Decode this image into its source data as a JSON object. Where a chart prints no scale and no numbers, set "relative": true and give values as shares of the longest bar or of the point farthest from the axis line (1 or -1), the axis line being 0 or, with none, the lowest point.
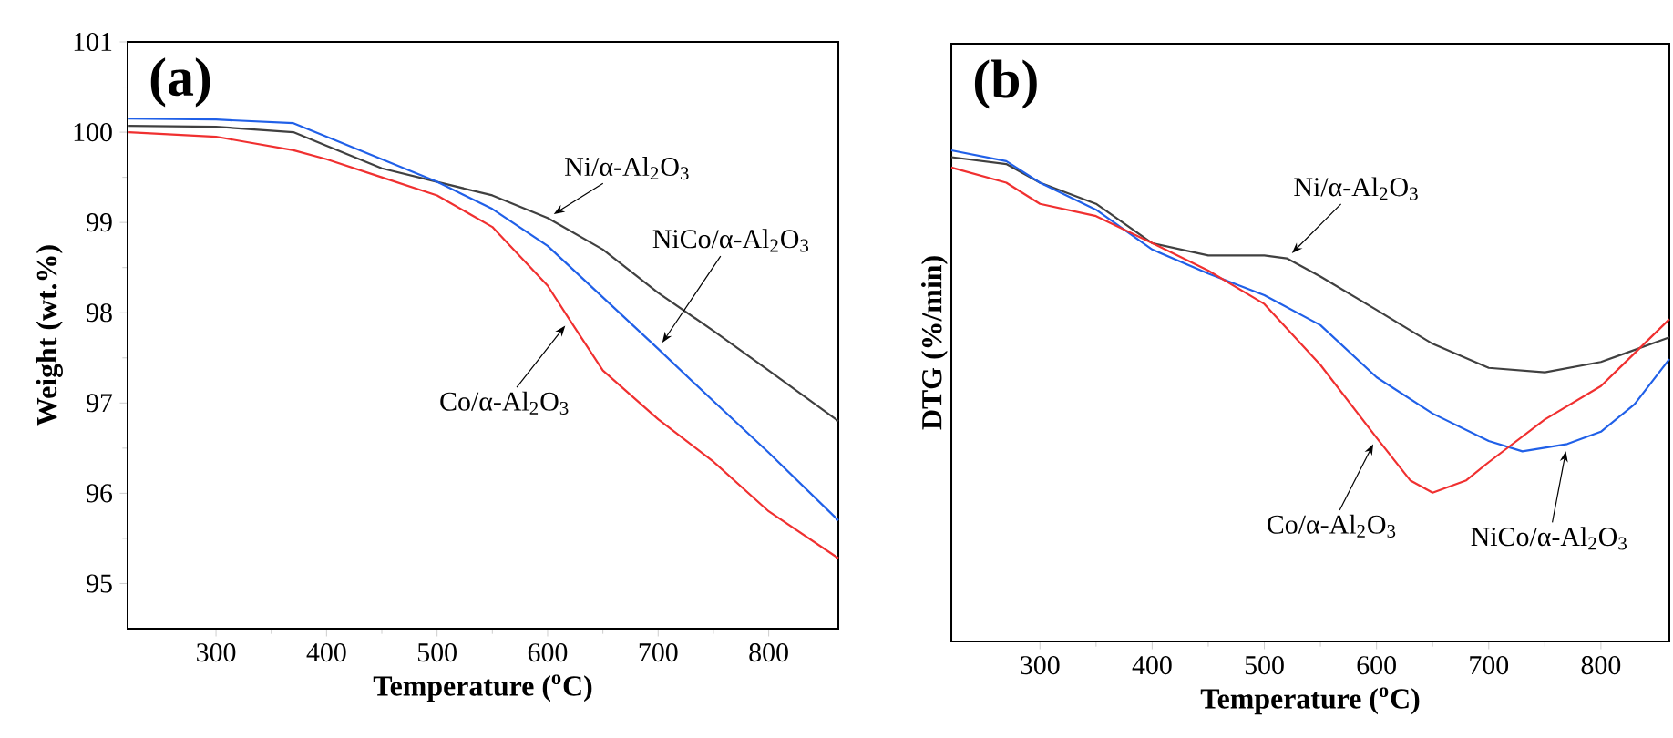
{
  "chart_data": [
    {
      "type": "line",
      "xlabel": "Temperature ($^{o}$C)",
      "ylabel": "Weight (wt.%)",
      "xlim": [
        220,
        863
      ],
      "ylim": [
        94.5,
        101
      ],
      "xticks": [
        300,
        400,
        500,
        600,
        700,
        800
      ],
      "yticks": [
        95,
        96,
        97,
        98,
        99,
        100,
        101
      ],
      "annotations": [
        "(a)",
        {
          "text": "Ni/α-Al$_{2}$O$_{3}$",
          "x": 600,
          "y": 99.05
        },
        {
          "text": "NiCo/α-Al$_{2}$O$_{3}$",
          "x": 700,
          "y": 97.6
        },
        {
          "text": "Co/α-Al$_{2}$O$_{3}$",
          "x": 620,
          "y": 97.92
        }
      ],
      "series": [
        {
          "color": "#404040",
          "x": [
            221,
            300,
            370,
            400,
            450,
            500,
            550,
            600,
            650,
            700,
            750,
            800,
            863
          ],
          "values": [
            100.07,
            100.06,
            100.0,
            99.85,
            99.6,
            99.45,
            99.3,
            99.05,
            98.7,
            98.22,
            97.8,
            97.36,
            96.8
          ]
        },
        {
          "color": "#2060e8",
          "x": [
            221,
            300,
            370,
            400,
            450,
            500,
            550,
            600,
            650,
            700,
            750,
            800,
            863
          ],
          "values": [
            100.15,
            100.14,
            100.1,
            99.95,
            99.7,
            99.45,
            99.15,
            98.74,
            98.17,
            97.6,
            97.02,
            96.45,
            95.7
          ]
        },
        {
          "color": "#f03030",
          "x": [
            221,
            300,
            370,
            400,
            450,
            500,
            550,
            600,
            620,
            650,
            700,
            750,
            800,
            863
          ],
          "values": [
            100.0,
            99.95,
            99.8,
            99.7,
            99.5,
            99.3,
            98.95,
            98.3,
            97.92,
            97.36,
            96.82,
            96.35,
            95.8,
            95.28
          ]
        }
      ]
    },
    {
      "type": "line",
      "relative": true,
      "xlabel": "Temperature ($^{o}$C)",
      "ylabel": "DTG (%/min)",
      "xlim": [
        221,
        861
      ],
      "xticks": [
        300,
        400,
        500,
        600,
        700,
        800
      ],
      "annotations": [
        "(b)",
        {
          "text": "Ni/α-Al$_{2}$O$_{3}$",
          "x": 520,
          "y": 0.78
        },
        {
          "text": "Co/α-Al$_{2}$O$_{3}$",
          "x": 600,
          "y": 0.415
        },
        {
          "text": "NiCo/α-Al$_{2}$O$_{3}$",
          "x": 770,
          "y": 0.402
        }
      ],
      "series": [
        {
          "color": "#404040",
          "x": [
            221,
            270,
            300,
            350,
            400,
            450,
            500,
            520,
            550,
            600,
            650,
            700,
            750,
            800,
            861
          ],
          "values": [
            0.986,
            0.972,
            0.934,
            0.891,
            0.811,
            0.786,
            0.786,
            0.78,
            0.743,
            0.675,
            0.606,
            0.557,
            0.548,
            0.569,
            0.619
          ]
        },
        {
          "color": "#2060e8",
          "x": [
            221,
            270,
            300,
            350,
            400,
            450,
            500,
            550,
            600,
            650,
            700,
            730,
            770,
            800,
            830,
            861
          ],
          "values": [
            1.0,
            0.978,
            0.934,
            0.879,
            0.798,
            0.749,
            0.705,
            0.644,
            0.538,
            0.464,
            0.408,
            0.387,
            0.402,
            0.427,
            0.483,
            0.575
          ]
        },
        {
          "color": "#f03030",
          "x": [
            221,
            270,
            300,
            350,
            400,
            450,
            500,
            550,
            600,
            630,
            650,
            680,
            700,
            750,
            800,
            861
          ],
          "values": [
            0.965,
            0.934,
            0.891,
            0.866,
            0.811,
            0.755,
            0.687,
            0.563,
            0.415,
            0.328,
            0.303,
            0.328,
            0.365,
            0.452,
            0.52,
            0.656
          ]
        }
      ]
    }
  ]
}
